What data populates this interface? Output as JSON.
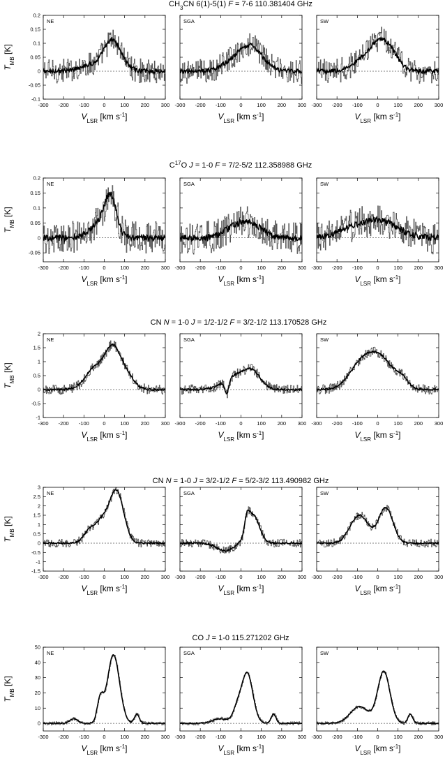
{
  "figure": {
    "x_axis_label": "V",
    "x_axis_sub": "LSR",
    "x_axis_unit": " [km s",
    "x_axis_sup": "-1",
    "x_axis_close": "]",
    "y_axis_label": "T",
    "y_axis_sub": "MB",
    "y_axis_unit": " [K]",
    "colors": {
      "raw": "#555555",
      "smooth": "#000000",
      "frame": "#000000"
    }
  },
  "chart_data": [
    {
      "type": "line",
      "title_parts": [
        "CH",
        "3",
        "CN",
        "    6(1)-5(1) ",
        "F",
        " = 7-6      110.381404 GHz"
      ],
      "xlim": [
        -300,
        300
      ],
      "ylim": [
        -0.1,
        0.2
      ],
      "yticks": [
        -0.1,
        -0.05,
        0,
        0.05,
        0.1,
        0.15,
        0.2
      ],
      "ytick_labels": [
        "-0.1",
        "-0.05",
        "0",
        "0.05",
        "0.1",
        "0.15",
        "0.2"
      ],
      "xticks": [
        -300,
        -200,
        -100,
        0,
        100,
        200,
        300
      ],
      "xtick_labels": [
        "-300",
        "-200",
        "-100",
        "0",
        "100",
        "200",
        "300"
      ],
      "noise": 0.02,
      "panels": [
        {
          "name": "NE",
          "components": [
            {
              "amp": 0.11,
              "center": 40,
              "width": 45
            },
            {
              "amp": 0.02,
              "center": -80,
              "width": 50
            }
          ]
        },
        {
          "name": "SGA",
          "components": [
            {
              "amp": 0.09,
              "center": 45,
              "width": 60
            },
            {
              "amp": 0.02,
              "center": -60,
              "width": 50
            }
          ]
        },
        {
          "name": "SW",
          "components": [
            {
              "amp": 0.1,
              "center": 30,
              "width": 55
            },
            {
              "amp": 0.04,
              "center": -60,
              "width": 60
            }
          ]
        }
      ]
    },
    {
      "type": "line",
      "title_parts": [
        "C",
        "17",
        "O",
        "    ",
        "J",
        " = 1-0 ",
        "F",
        " = 7/2-5/2      112.358988 GHz"
      ],
      "xlim": [
        -300,
        300
      ],
      "ylim": [
        -0.08,
        0.2
      ],
      "yticks": [
        -0.05,
        0,
        0.05,
        0.1,
        0.15,
        0.2
      ],
      "ytick_labels": [
        "-0.05",
        "0",
        "0.05",
        "0.1",
        "0.15",
        "0.2"
      ],
      "xticks": [
        -300,
        -200,
        -100,
        0,
        100,
        200,
        300
      ],
      "xtick_labels": [
        "-300",
        "-200",
        "-100",
        "0",
        "100",
        "200",
        "300"
      ],
      "noise": 0.025,
      "panels": [
        {
          "name": "NE",
          "components": [
            {
              "amp": 0.14,
              "center": 30,
              "width": 30
            },
            {
              "amp": 0.04,
              "center": -40,
              "width": 40
            }
          ]
        },
        {
          "name": "SGA",
          "components": [
            {
              "amp": 0.05,
              "center": 40,
              "width": 60
            },
            {
              "amp": 0.02,
              "center": -50,
              "width": 50
            }
          ]
        },
        {
          "name": "SW",
          "components": [
            {
              "amp": 0.06,
              "center": 0,
              "width": 90
            },
            {
              "amp": 0.02,
              "center": -150,
              "width": 60
            }
          ]
        }
      ]
    },
    {
      "type": "line",
      "title_parts": [
        "CN    ",
        "N",
        " = 1-0 ",
        "J",
        " = 1/2-1/2 ",
        "F",
        " = 3/2-1/2      113.170528 GHz"
      ],
      "xlim": [
        -300,
        300
      ],
      "ylim": [
        -1,
        2
      ],
      "yticks": [
        -1,
        -0.5,
        0,
        0.5,
        1,
        1.5,
        2
      ],
      "ytick_labels": [
        "-1",
        "-0.5",
        "0",
        "0.5",
        "1",
        "1.5",
        "2"
      ],
      "xticks": [
        -300,
        -200,
        -100,
        0,
        100,
        200,
        300
      ],
      "xtick_labels": [
        "-300",
        "-200",
        "-100",
        "0",
        "100",
        "200",
        "300"
      ],
      "noise": 0.08,
      "panels": [
        {
          "name": "NE",
          "components": [
            {
              "amp": 0.8,
              "center": -40,
              "width": 50
            },
            {
              "amp": 1.2,
              "center": 40,
              "width": 35
            },
            {
              "amp": 0.6,
              "center": 100,
              "width": 40
            }
          ]
        },
        {
          "name": "SGA",
          "components": [
            {
              "amp": 0.5,
              "center": -20,
              "width": 60
            },
            {
              "amp": 0.5,
              "center": 60,
              "width": 40
            },
            {
              "amp": -0.5,
              "center": -70,
              "width": 10
            }
          ]
        },
        {
          "name": "SW",
          "components": [
            {
              "amp": 0.9,
              "center": -80,
              "width": 60
            },
            {
              "amp": 1.0,
              "center": 20,
              "width": 60
            },
            {
              "amp": 0.3,
              "center": 120,
              "width": 30
            }
          ]
        }
      ]
    },
    {
      "type": "line",
      "title_parts": [
        "CN    ",
        "N",
        " = 1-0 ",
        "J",
        " = 3/2-1/2 ",
        "F",
        " = 5/2-3/2      113.490982 GHz"
      ],
      "xlim": [
        -300,
        300
      ],
      "ylim": [
        -1.5,
        3
      ],
      "yticks": [
        -1.5,
        -1,
        -0.5,
        0,
        0.5,
        1,
        1.5,
        2,
        2.5,
        3
      ],
      "ytick_labels": [
        "-1.5",
        "-1",
        "-0.5",
        "0",
        "0.5",
        "1",
        "1.5",
        "2",
        "2.5",
        "3"
      ],
      "xticks": [
        -300,
        -200,
        -100,
        0,
        100,
        200,
        300
      ],
      "xtick_labels": [
        "-300",
        "-200",
        "-100",
        "0",
        "100",
        "200",
        "300"
      ],
      "noise": 0.1,
      "panels": [
        {
          "name": "NE",
          "components": [
            {
              "amp": 2.8,
              "center": 60,
              "width": 35
            },
            {
              "amp": 1.0,
              "center": -10,
              "width": 30
            },
            {
              "amp": 0.7,
              "center": -70,
              "width": 30
            }
          ]
        },
        {
          "name": "SGA",
          "components": [
            {
              "amp": 1.5,
              "center": 60,
              "width": 30
            },
            {
              "amp": 0.8,
              "center": 30,
              "width": 12
            },
            {
              "amp": -0.4,
              "center": -80,
              "width": 40
            }
          ]
        },
        {
          "name": "SW",
          "components": [
            {
              "amp": 1.5,
              "center": -90,
              "width": 45
            },
            {
              "amp": 1.9,
              "center": 40,
              "width": 35
            }
          ]
        }
      ]
    },
    {
      "type": "line",
      "title_parts": [
        "CO    ",
        "J",
        " = 1-0      115.271202 GHz"
      ],
      "xlim": [
        -300,
        300
      ],
      "ylim": [
        -5,
        50
      ],
      "yticks": [
        0,
        10,
        20,
        30,
        40,
        50
      ],
      "ytick_labels": [
        "0",
        "10",
        "20",
        "30",
        "40",
        "50"
      ],
      "xticks": [
        -300,
        -200,
        -100,
        0,
        100,
        200,
        300
      ],
      "xtick_labels": [
        "-300",
        "-200",
        "-100",
        "0",
        "100",
        "200",
        "300"
      ],
      "noise": 0.5,
      "panels": [
        {
          "name": "NE",
          "components": [
            {
              "amp": 45,
              "center": 45,
              "width": 30
            },
            {
              "amp": 15,
              "center": -20,
              "width": 15
            },
            {
              "amp": 3,
              "center": -150,
              "width": 20
            },
            {
              "amp": 6,
              "center": 160,
              "width": 12
            }
          ]
        },
        {
          "name": "SGA",
          "components": [
            {
              "amp": 33,
              "center": 30,
              "width": 28
            },
            {
              "amp": 8,
              "center": -20,
              "width": 20
            },
            {
              "amp": 3,
              "center": -100,
              "width": 40
            },
            {
              "amp": 6,
              "center": 160,
              "width": 12
            }
          ]
        },
        {
          "name": "SW",
          "components": [
            {
              "amp": 34,
              "center": 30,
              "width": 30
            },
            {
              "amp": 11,
              "center": -90,
              "width": 45
            },
            {
              "amp": 6,
              "center": 160,
              "width": 12
            }
          ]
        }
      ]
    }
  ]
}
